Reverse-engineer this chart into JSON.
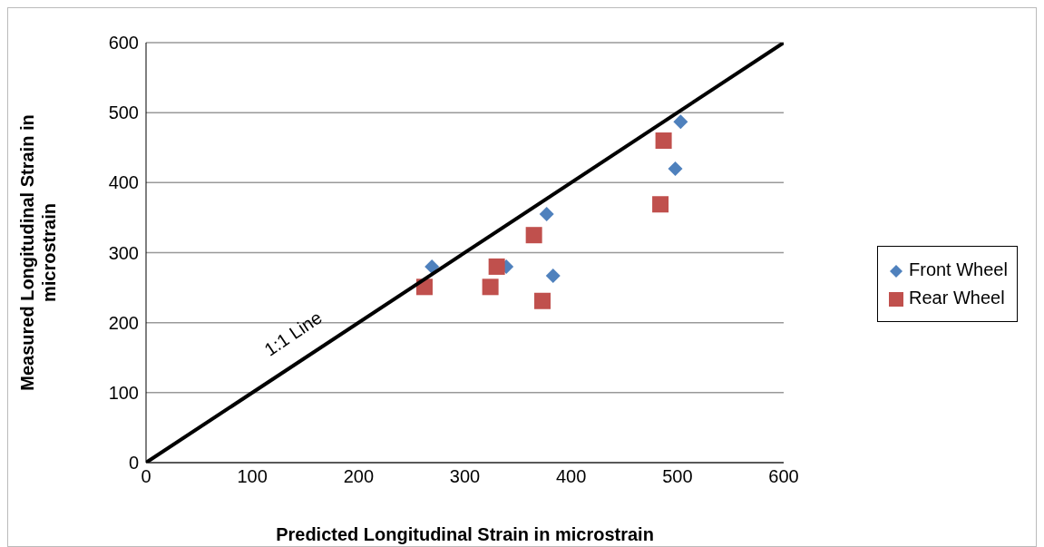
{
  "chart_data": {
    "type": "scatter",
    "xlabel": "Predicted Longitudinal Strain in microstrain",
    "ylabel": "Measured Longitudinal Strain in microstrain",
    "xlim": [
      0,
      600
    ],
    "xticks": [
      0,
      100,
      200,
      300,
      400,
      500,
      600
    ],
    "ylim": [
      0,
      600
    ],
    "yticks": [
      0,
      100,
      200,
      300,
      400,
      500,
      600
    ],
    "grid": "y",
    "legend": "right",
    "series": [
      {
        "name": "Front Wheel",
        "color": "#4f81bd",
        "marker": "diamond",
        "x": [
          269,
          339,
          377,
          383,
          498,
          503
        ],
        "values": [
          280,
          280,
          355,
          267,
          420,
          487
        ]
      },
      {
        "name": "Rear Wheel",
        "color": "#c0504d",
        "marker": "square",
        "x": [
          262,
          324,
          330,
          365,
          373,
          484,
          487
        ],
        "values": [
          251,
          251,
          280,
          325,
          231,
          369,
          460
        ]
      },
      {
        "type": "line",
        "color": "#000000",
        "marker": "none",
        "x": [
          0,
          600
        ],
        "values": [
          0,
          600
        ]
      }
    ],
    "annotations": [
      "1:1 Line"
    ]
  }
}
